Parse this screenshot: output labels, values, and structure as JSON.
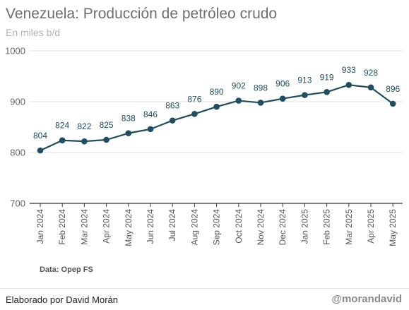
{
  "header": {
    "title": "Venezuela: Producción de petróleo crudo",
    "subtitle": "En miles b/d"
  },
  "footer": {
    "source": "Data: Opep FS",
    "credit": "Elaborado por David Morán",
    "brand": "@morandavid"
  },
  "colors": {
    "series": "#1e4e5f",
    "grid": "#e1e1e1",
    "axis": "#333333"
  },
  "chart_data": {
    "type": "line",
    "title": "Venezuela: Producción de petróleo crudo",
    "subtitle": "En miles b/d",
    "xlabel": "",
    "ylabel": "",
    "ylim": [
      700,
      1000
    ],
    "yticks": [
      700,
      800,
      900,
      1000
    ],
    "grid": true,
    "x": [
      "Jan 2024",
      "Feb 2024",
      "Mar 2024",
      "Apr 2024",
      "May 2024",
      "Jun 2024",
      "Jul 2024",
      "Aug 2024",
      "Sep 2024",
      "Oct 2024",
      "Nov 2024",
      "Dec 2024",
      "Jan 2025",
      "Feb 2025",
      "Mar 2025",
      "Apr 2025",
      "May 2025"
    ],
    "values": [
      804,
      824,
      822,
      825,
      838,
      846,
      863,
      876,
      890,
      902,
      898,
      906,
      913,
      919,
      933,
      928,
      896
    ]
  }
}
